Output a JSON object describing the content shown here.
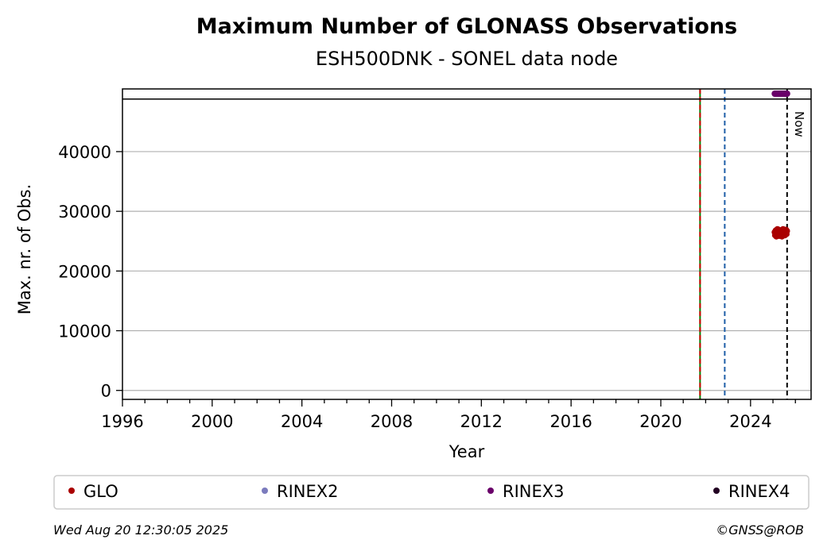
{
  "chart_data": {
    "type": "scatter",
    "title": "Maximum Number of GLONASS Observations",
    "subtitle": "ESH500DNK - SONEL data node",
    "xlabel": "Year",
    "ylabel": "Max. nr. of Obs.",
    "xlim": [
      1996,
      2026.7
    ],
    "ylim": [
      -1500,
      50500
    ],
    "x_ticks": [
      1996,
      2000,
      2004,
      2008,
      2012,
      2016,
      2020,
      2024
    ],
    "x_tick_labels": [
      "1996",
      "2000",
      "2004",
      "2008",
      "2012",
      "2016",
      "2020",
      "2024"
    ],
    "y_ticks": [
      0,
      10000,
      20000,
      30000,
      40000
    ],
    "y_tick_labels": [
      "0",
      "10000",
      "20000",
      "30000",
      "40000"
    ],
    "grid": "horizontal",
    "reference_line_y": 48800,
    "vertical_lines": [
      {
        "x": 2021.75,
        "style": "solid",
        "color": "#008000"
      },
      {
        "x": 2021.75,
        "style": "dashed",
        "color": "#cc0000"
      },
      {
        "x": 2022.85,
        "style": "dashed",
        "color": "#1f5fa8"
      },
      {
        "x": 2025.63,
        "style": "dashed",
        "color": "#000000",
        "label": "Now"
      }
    ],
    "series": [
      {
        "name": "GLO",
        "color": "#aa0000",
        "x": [
          2025.08,
          2025.1,
          2025.13,
          2025.15,
          2025.18,
          2025.2,
          2025.23,
          2025.25,
          2025.28,
          2025.3,
          2025.33,
          2025.35,
          2025.38,
          2025.4,
          2025.43,
          2025.45,
          2025.48,
          2025.5,
          2025.53,
          2025.55,
          2025.58,
          2025.6,
          2025.62
        ],
        "y": [
          26500,
          26000,
          26800,
          25800,
          26600,
          27000,
          26200,
          26900,
          25900,
          26400,
          26800,
          26100,
          26700,
          25800,
          26500,
          27000,
          26300,
          26800,
          26000,
          26600,
          26900,
          26200,
          26700
        ]
      },
      {
        "name": "RINEX2",
        "color": "#7b7bbd",
        "x": [],
        "y": []
      },
      {
        "name": "RINEX3",
        "color": "#6a006a",
        "x": [
          2025.08,
          2025.12,
          2025.16,
          2025.2,
          2025.24,
          2025.28,
          2025.32,
          2025.36,
          2025.4,
          2025.44,
          2025.48,
          2025.52,
          2025.56,
          2025.6,
          2025.63
        ],
        "y": [
          49700,
          49700,
          49700,
          49700,
          49700,
          49700,
          49700,
          49700,
          49700,
          49700,
          49700,
          49700,
          49700,
          49700,
          49700
        ]
      },
      {
        "name": "RINEX4",
        "color": "#220022",
        "x": [],
        "y": []
      }
    ],
    "legend_position": "bottom"
  },
  "footer": {
    "timestamp": "Wed Aug 20 12:30:05 2025",
    "credit": "©GNSS@ROB"
  }
}
